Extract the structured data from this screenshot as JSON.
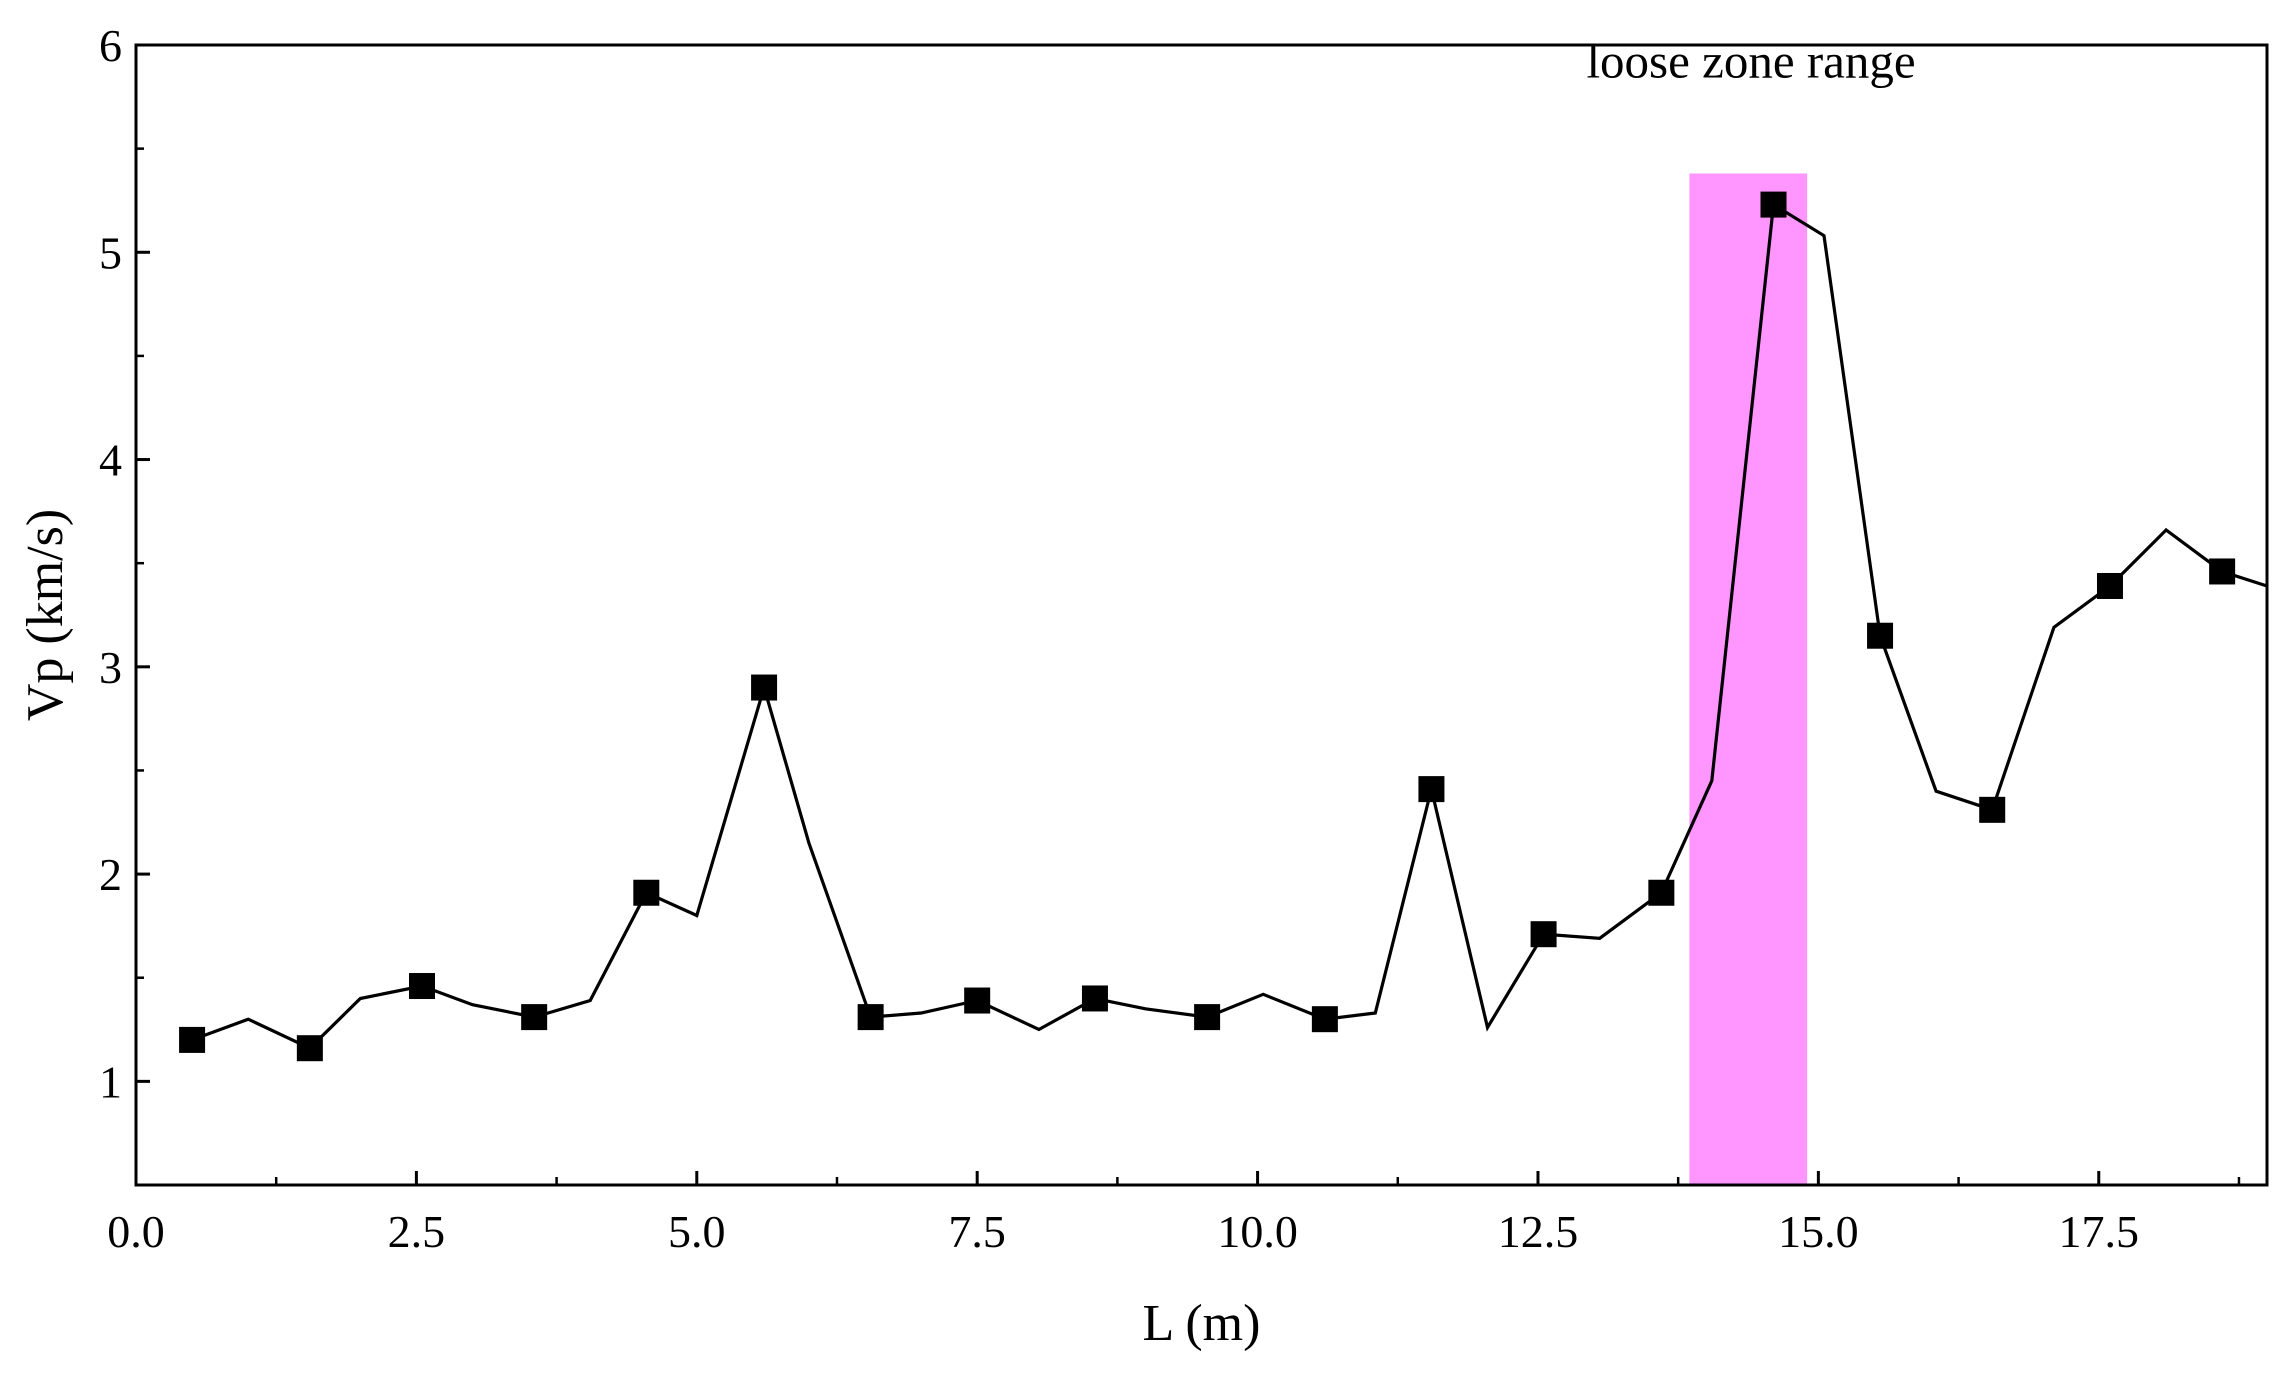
{
  "chart_data": {
    "type": "line",
    "xlabel": "L (m)",
    "ylabel": "Vp (km/s)",
    "xlim": [
      0,
      19
    ],
    "ylim": [
      0.5,
      6
    ],
    "x_ticks": [
      0,
      2.5,
      5,
      7.5,
      10,
      12.5,
      15,
      17.5
    ],
    "x_tick_labels": [
      "0.0",
      "2.5",
      "5.0",
      "7.5",
      "10.0",
      "12.5",
      "15.0",
      "17.5"
    ],
    "y_ticks": [
      1,
      2,
      3,
      4,
      5,
      6
    ],
    "y_tick_labels": [
      "1",
      "2",
      "3",
      "4",
      "5",
      "6"
    ],
    "grid": false,
    "series": [
      {
        "x": [
          0.5,
          1.0,
          1.55,
          2.0,
          2.55,
          3.0,
          3.55,
          4.05,
          4.55,
          5.0,
          5.6,
          6.0,
          6.55,
          7.0,
          7.5,
          8.05,
          8.55,
          9.0,
          9.55,
          10.05,
          10.6,
          11.05,
          11.55,
          12.05,
          12.55,
          13.05,
          13.6,
          14.05,
          14.6,
          15.05,
          15.55,
          16.05,
          16.55,
          17.1,
          17.6,
          18.1,
          18.6,
          19.0
        ],
        "y": [
          1.2,
          1.3,
          1.16,
          1.4,
          1.46,
          1.37,
          1.31,
          1.39,
          1.91,
          1.8,
          2.9,
          2.15,
          1.31,
          1.33,
          1.39,
          1.25,
          1.4,
          1.35,
          1.31,
          1.42,
          1.3,
          1.33,
          2.41,
          1.26,
          1.71,
          1.69,
          1.91,
          2.45,
          5.23,
          5.08,
          3.15,
          2.4,
          2.31,
          3.19,
          3.39,
          3.66,
          3.46,
          3.39
        ],
        "markers_at": [
          0.5,
          1.55,
          2.55,
          3.55,
          4.55,
          5.6,
          6.55,
          7.5,
          8.55,
          9.55,
          10.6,
          11.55,
          12.55,
          13.6,
          14.6,
          15.55,
          16.55,
          17.6,
          18.6
        ],
        "color": "#000000"
      }
    ],
    "highlight_band": {
      "x0": 13.85,
      "x1": 14.9,
      "y0": 0.5,
      "y1": 5.38,
      "color": "#ff96ff"
    },
    "annotations": [
      {
        "text": "loose zone range",
        "x": 14.4,
        "y": 5.92
      }
    ]
  }
}
